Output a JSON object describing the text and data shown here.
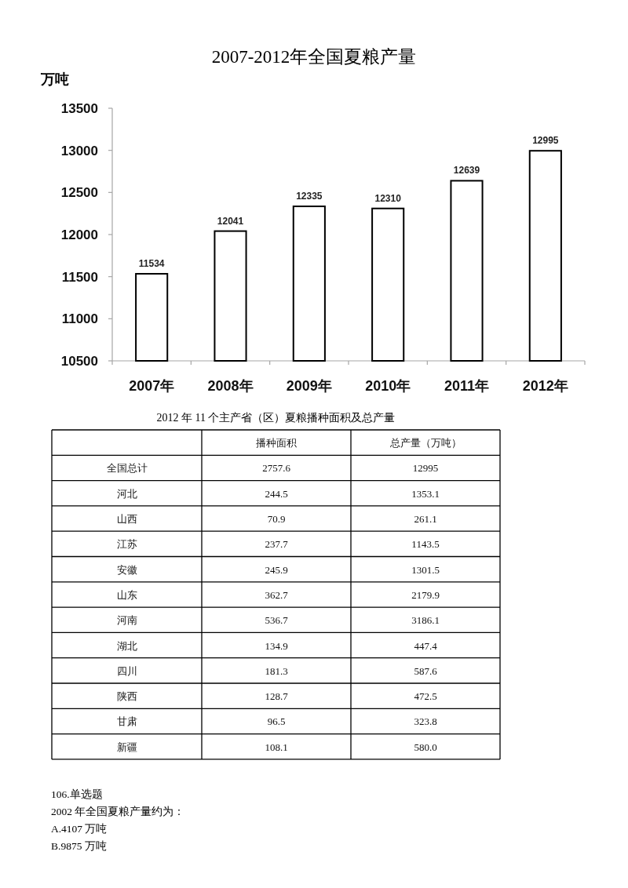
{
  "chart_data": [
    {
      "type": "bar",
      "title": "2007-2012年全国夏粮产量",
      "ylabel": "万吨",
      "categories": [
        "2007年",
        "2008年",
        "2009年",
        "2010年",
        "2011年",
        "2012年"
      ],
      "values": [
        11534,
        12041,
        12335,
        12310,
        12639,
        12995
      ],
      "color": "#ffffff",
      "ylim": [
        10500,
        13500
      ],
      "yticks": [
        10500,
        11000,
        11500,
        12000,
        12500,
        13000,
        13500
      ],
      "data_labels": true
    },
    {
      "type": "other",
      "title": "2012 年 11 个主产省（区）夏粮播种面积及总产量",
      "categories": [
        "全国总计",
        "河北",
        "山西",
        "江苏",
        "安徽",
        "山东",
        "河南",
        "湖北",
        "四川",
        "陕西",
        "甘肃",
        "新疆"
      ],
      "series": [
        {
          "name": "播种面积",
          "values": [
            2757.6,
            244.5,
            70.9,
            237.7,
            245.9,
            362.7,
            536.7,
            134.9,
            181.3,
            128.7,
            96.5,
            108.1
          ],
          "value_labels": [
            "2757.6",
            "244.5",
            "70.9",
            "237.7",
            "245.9",
            "362.7",
            "536.7",
            "134.9",
            "181.3",
            "128.7",
            "96.5",
            "108.1"
          ]
        },
        {
          "name": "总产量（万吨）",
          "values": [
            12995,
            1353.1,
            261.1,
            1143.5,
            1301.5,
            2179.9,
            3186.1,
            447.4,
            587.6,
            472.5,
            323.8,
            580.0
          ],
          "value_labels": [
            "12995",
            "1353.1",
            "261.1",
            "1143.5",
            "1301.5",
            "2179.9",
            "3186.1",
            "447.4",
            "587.6",
            "472.5",
            "323.8",
            "580.0"
          ]
        }
      ]
    },
    {
      "type": "other",
      "annotations": [
        "106.单选题",
        "2002 年全国夏粮产量约为：",
        "A.4107 万吨",
        "B.9875 万吨"
      ]
    }
  ]
}
